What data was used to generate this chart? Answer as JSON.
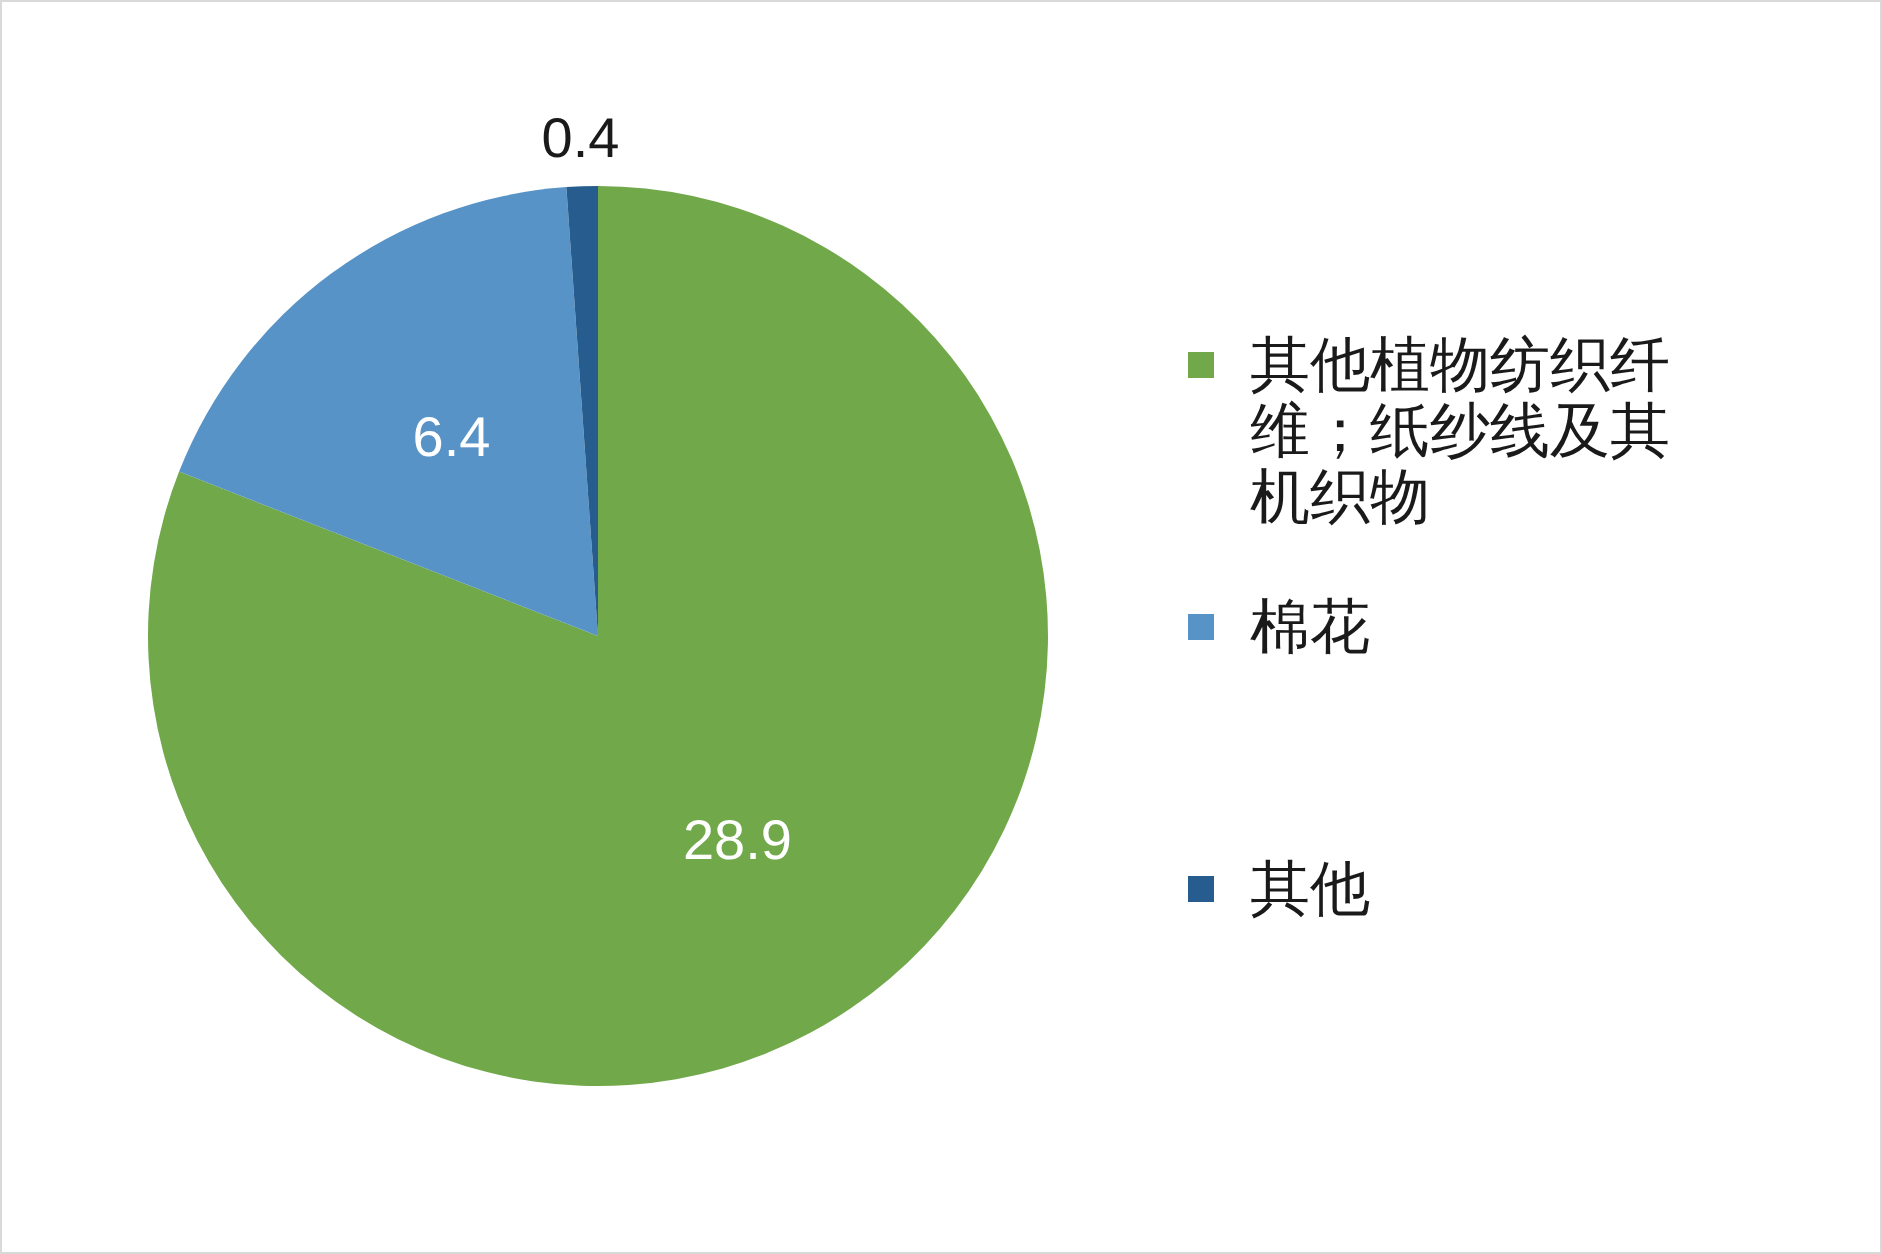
{
  "chart_data": {
    "type": "pie",
    "categories": [
      "其他植物纺织纤维；纸纱线及其机织物",
      "棉花",
      "其他"
    ],
    "values": [
      28.9,
      6.4,
      0.4
    ],
    "colors": [
      "#70a84a",
      "#5793c6",
      "#275d8e"
    ],
    "data_labels": true,
    "legend": "right"
  }
}
